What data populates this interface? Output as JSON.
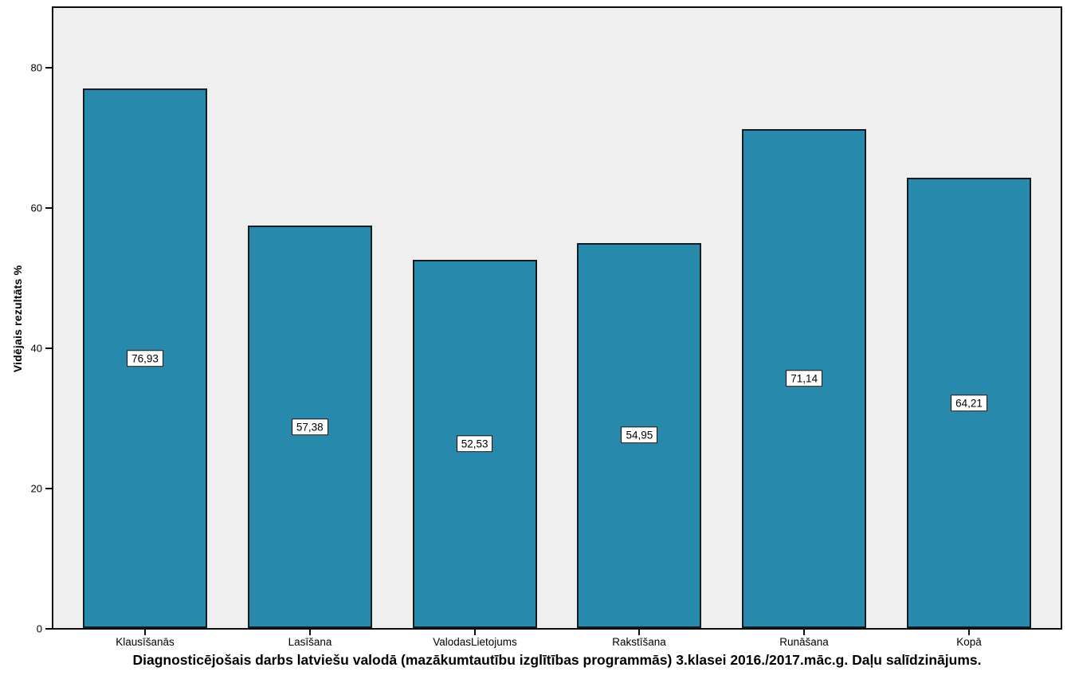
{
  "chart_data": {
    "type": "bar",
    "title": "Diagnosticējošais darbs latviešu valodā (mazākumtautību izglītības programmās) 3.klasei 2016./2017.māc.g. Daļu salīdzinājums.",
    "ylabel": "Vidējais rezultāts %",
    "xlabel": "",
    "categories": [
      "Klausīšanās",
      "Lasīšana",
      "ValodasLietojums",
      "Rakstīšana",
      "Runāšana",
      "Kopā"
    ],
    "values": [
      76.93,
      57.38,
      52.53,
      54.95,
      71.14,
      64.21
    ],
    "value_labels": [
      "76,93",
      "57,38",
      "52,53",
      "54,95",
      "71,14",
      "64,21"
    ],
    "yticks": [
      0,
      20,
      40,
      60,
      80
    ],
    "ytick_labels": [
      "0",
      "20",
      "40",
      "60",
      "80"
    ],
    "ylim": [
      0,
      88.9
    ],
    "grid": false,
    "legend": "none",
    "colors": {
      "bar_fill": "#2789ab",
      "bar_border": "#121c22",
      "plot_background": "#efefef",
      "page_background": "#ffffff",
      "text": "#000000",
      "value_label_background": "#ffffff"
    }
  }
}
